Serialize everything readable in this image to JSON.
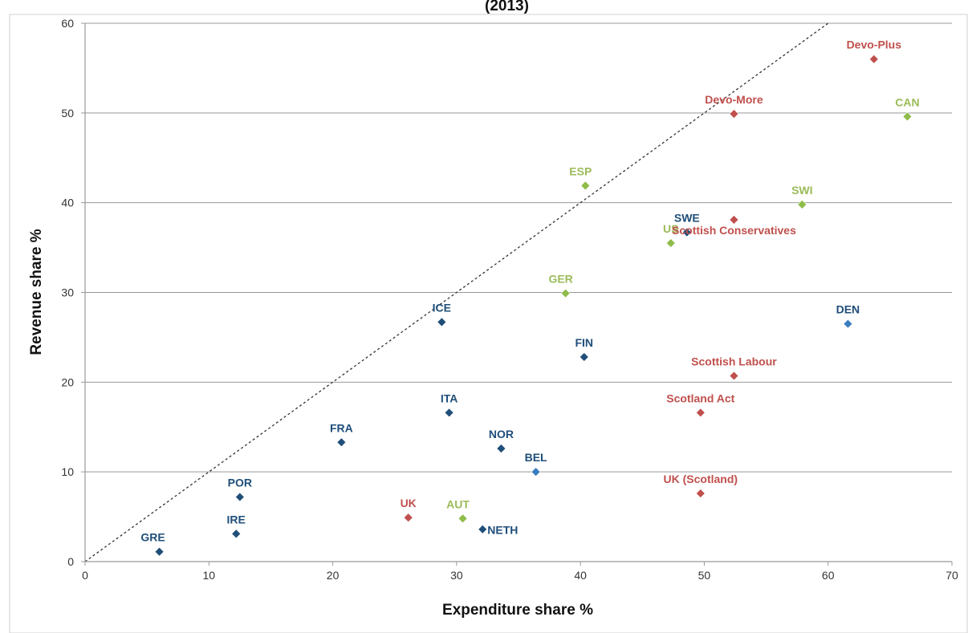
{
  "figure_title_visible": "(2013)",
  "colors": {
    "country": "#1f4e79",
    "country_light": "#3a7cc0",
    "federal": "#8fbc4a",
    "federal_label": "#9bbb59",
    "scotland": "#c0504d",
    "grid": "#999999",
    "axis": "#999999"
  },
  "chart_data": {
    "type": "scatter",
    "xlabel": "Expenditure share %",
    "ylabel": "Revenue share %",
    "xlim": [
      0,
      70
    ],
    "ylim": [
      0,
      60
    ],
    "xticks": [
      0,
      10,
      20,
      30,
      40,
      50,
      60,
      70
    ],
    "yticks": [
      0,
      10,
      20,
      30,
      40,
      50,
      60
    ],
    "grid": "horizontal",
    "reference_line": {
      "style": "dotted",
      "from": [
        0,
        0
      ],
      "to": [
        60,
        60
      ]
    },
    "points": [
      {
        "label": "GRE",
        "x": 6,
        "y": 1.1,
        "group": "country"
      },
      {
        "label": "IRE",
        "x": 12.2,
        "y": 3.1,
        "group": "country"
      },
      {
        "label": "POR",
        "x": 12.5,
        "y": 7.2,
        "group": "country"
      },
      {
        "label": "FRA",
        "x": 20.7,
        "y": 13.3,
        "group": "country"
      },
      {
        "label": "ICE",
        "x": 28.8,
        "y": 26.7,
        "group": "country"
      },
      {
        "label": "ITA",
        "x": 29.4,
        "y": 16.6,
        "group": "country"
      },
      {
        "label": "NOR",
        "x": 33.6,
        "y": 12.6,
        "group": "country"
      },
      {
        "label": "NETH",
        "x": 32.1,
        "y": 3.6,
        "group": "country"
      },
      {
        "label": "FIN",
        "x": 40.3,
        "y": 22.8,
        "group": "country"
      },
      {
        "label": "SWE",
        "x": 48.6,
        "y": 36.7,
        "group": "country"
      },
      {
        "label": "BEL",
        "x": 36.4,
        "y": 10.0,
        "group": "country_light"
      },
      {
        "label": "DEN",
        "x": 61.6,
        "y": 26.5,
        "group": "country_light"
      },
      {
        "label": "AUT",
        "x": 30.5,
        "y": 4.8,
        "group": "federal"
      },
      {
        "label": "GER",
        "x": 38.8,
        "y": 29.9,
        "group": "federal"
      },
      {
        "label": "ESP",
        "x": 40.4,
        "y": 41.9,
        "group": "federal"
      },
      {
        "label": "US",
        "x": 47.3,
        "y": 35.5,
        "group": "federal"
      },
      {
        "label": "SWI",
        "x": 57.9,
        "y": 39.8,
        "group": "federal"
      },
      {
        "label": "CAN",
        "x": 66.4,
        "y": 49.6,
        "group": "federal"
      },
      {
        "label": "UK",
        "x": 26.1,
        "y": 4.9,
        "group": "scotland"
      },
      {
        "label": "UK (Scotland)",
        "x": 49.7,
        "y": 7.6,
        "group": "scotland"
      },
      {
        "label": "Scotland Act",
        "x": 49.7,
        "y": 16.6,
        "group": "scotland"
      },
      {
        "label": "Scottish Labour",
        "x": 52.4,
        "y": 20.7,
        "group": "scotland"
      },
      {
        "label": "Scottish Conservatives",
        "x": 52.4,
        "y": 38.1,
        "group": "scotland"
      },
      {
        "label": "Devo-More",
        "x": 52.4,
        "y": 49.9,
        "group": "scotland"
      },
      {
        "label": "Devo-Plus",
        "x": 63.7,
        "y": 56.0,
        "group": "scotland"
      }
    ]
  }
}
